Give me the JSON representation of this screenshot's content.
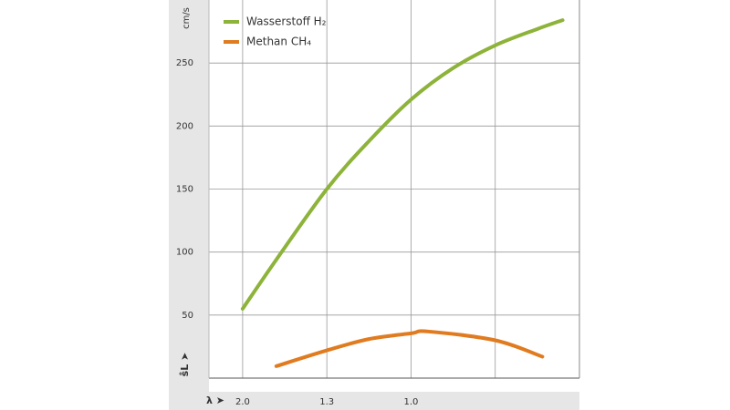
{
  "chart_data": {
    "type": "line",
    "x_label": "λ ➤",
    "y_label": "s̊L ➤",
    "y_unit": "cm/s",
    "xlim": [
      0.4,
      1.5
    ],
    "ylim": [
      0,
      300
    ],
    "xticks": [
      {
        "value": 0.5,
        "label": "2.0"
      },
      {
        "value": 0.75,
        "label": "1.3"
      },
      {
        "value": 1.0,
        "label": "1.0"
      },
      {
        "value": 1.25,
        "label": null
      }
    ],
    "yticks": [
      50,
      100,
      150,
      200,
      250
    ],
    "grid": true,
    "legend": "top-left",
    "series": [
      {
        "name": "Wasserstoff H₂",
        "color": "#8db33a",
        "x": [
          0.5,
          0.6,
          0.75,
          0.875,
          1.0,
          1.125,
          1.25,
          1.375,
          1.45
        ],
        "values": [
          55,
          94,
          150,
          188,
          221,
          246,
          264,
          277,
          284
        ]
      },
      {
        "name": "Methan CH₄",
        "color": "#e07b20",
        "x": [
          0.6,
          0.75,
          0.875,
          1.0,
          1.05,
          1.25,
          1.39
        ],
        "values": [
          9.5,
          22,
          31,
          35.5,
          37,
          30,
          17
        ]
      }
    ]
  }
}
